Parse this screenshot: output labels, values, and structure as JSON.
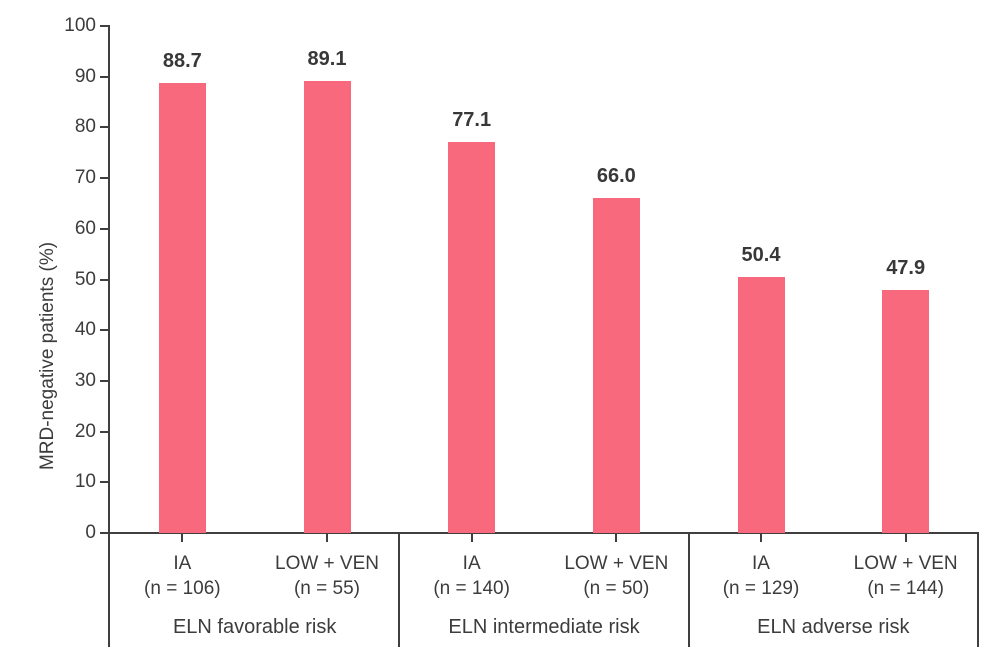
{
  "chart_data": {
    "type": "bar",
    "title": "",
    "xlabel": "",
    "ylabel": "MRD-negative patients (%)",
    "ylim": [
      0,
      100
    ],
    "yticks": [
      0,
      10,
      20,
      30,
      40,
      50,
      60,
      70,
      80,
      90,
      100
    ],
    "grid": false,
    "legend": "none",
    "bar_color": "#f9697e",
    "groups": [
      {
        "label": "ELN favorable risk",
        "bars": [
          {
            "arm": "IA",
            "n_label": "(n = 106)",
            "value": 88.7,
            "value_label": "88.7"
          },
          {
            "arm": "LOW + VEN",
            "n_label": "(n = 55)",
            "value": 89.1,
            "value_label": "89.1"
          }
        ]
      },
      {
        "label": "ELN intermediate risk",
        "bars": [
          {
            "arm": "IA",
            "n_label": "(n = 140)",
            "value": 77.1,
            "value_label": "77.1"
          },
          {
            "arm": "LOW + VEN",
            "n_label": "(n = 50)",
            "value": 66.0,
            "value_label": "66.0"
          }
        ]
      },
      {
        "label": "ELN adverse risk",
        "bars": [
          {
            "arm": "IA",
            "n_label": "(n = 129)",
            "value": 50.4,
            "value_label": "50.4"
          },
          {
            "arm": "LOW + VEN",
            "n_label": "(n = 144)",
            "value": 47.9,
            "value_label": "47.9"
          }
        ]
      }
    ]
  }
}
